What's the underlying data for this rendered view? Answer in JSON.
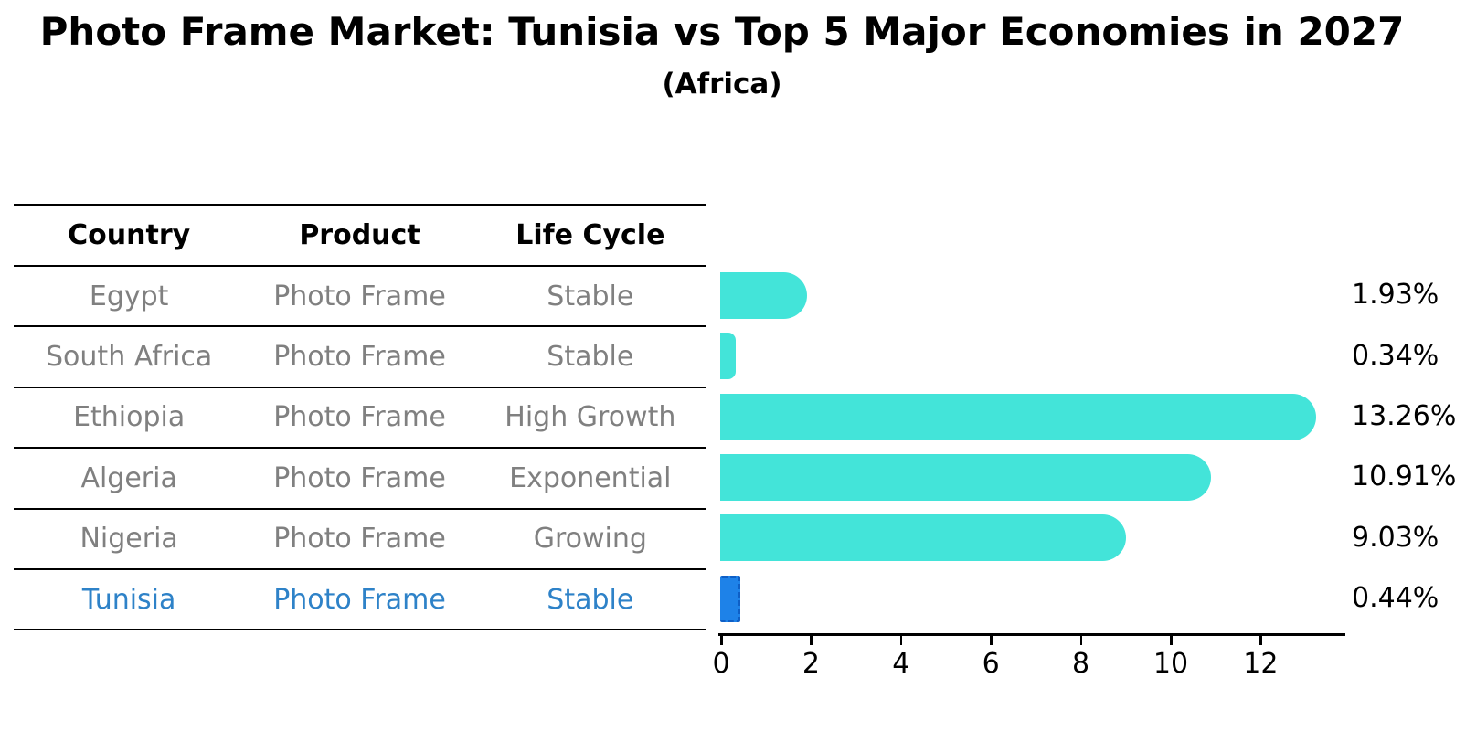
{
  "title": "Photo Frame Market: Tunisia vs Top 5 Major Economies in 2027",
  "subtitle": "(Africa)",
  "table": {
    "headers": [
      "Country",
      "Product",
      "Life Cycle"
    ],
    "rows": [
      {
        "country": "Egypt",
        "product": "Photo Frame",
        "life_cycle": "Stable",
        "highlight": false
      },
      {
        "country": "South Africa",
        "product": "Photo Frame",
        "life_cycle": "Stable",
        "highlight": false
      },
      {
        "country": "Ethiopia",
        "product": "Photo Frame",
        "life_cycle": "High Growth",
        "highlight": false
      },
      {
        "country": "Algeria",
        "product": "Photo Frame",
        "life_cycle": "Exponential",
        "highlight": false
      },
      {
        "country": "Nigeria",
        "product": "Photo Frame",
        "life_cycle": "Growing",
        "highlight": false
      },
      {
        "country": "Tunisia",
        "product": "Photo Frame",
        "life_cycle": "Stable",
        "highlight": true
      }
    ]
  },
  "chart_data": {
    "type": "bar",
    "orientation": "horizontal",
    "title": "Photo Frame Market: Tunisia vs Top 5 Major Economies in 2027",
    "subtitle": "(Africa)",
    "categories": [
      "Egypt",
      "South Africa",
      "Ethiopia",
      "Algeria",
      "Nigeria",
      "Tunisia"
    ],
    "values": [
      1.93,
      0.34,
      13.26,
      10.91,
      9.03,
      0.44
    ],
    "value_labels": [
      "1.93%",
      "0.34%",
      "13.26%",
      "10.91%",
      "9.03%",
      "0.44%"
    ],
    "highlight_index": 5,
    "xlabel": "",
    "ylabel": "",
    "xticks": [
      0,
      2,
      4,
      6,
      8,
      10,
      12
    ],
    "xlim": [
      0,
      13.9
    ],
    "grid": false,
    "legend": "none",
    "colors": {
      "bar": "#43e4d9",
      "highlight_bar": "#1e82e8",
      "highlight_edge": "#0e5fc6",
      "highlight_text": "#2e82c8",
      "table_text": "#808080",
      "axis_text": "#000000"
    }
  }
}
